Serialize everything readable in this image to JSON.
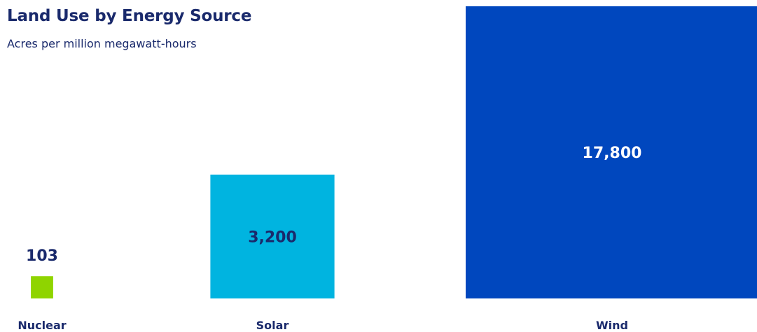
{
  "chart_data": {
    "type": "bar",
    "title": "Land Use by Energy Source",
    "subtitle": "Acres per million megawatt-hours",
    "categories": [
      "Nuclear",
      "Solar",
      "Wind"
    ],
    "values": [
      103,
      3200,
      17800
    ],
    "value_labels": [
      "103",
      "3,200",
      "17,800"
    ],
    "colors": [
      "#8fd400",
      "#00b4e0",
      "#0047be"
    ],
    "text_color": "#1a2a6c",
    "inner_label_colors": [
      "#1a2a6c",
      "#1a2a6c",
      "#ffffff"
    ],
    "encoding": "square area proportional to value"
  }
}
